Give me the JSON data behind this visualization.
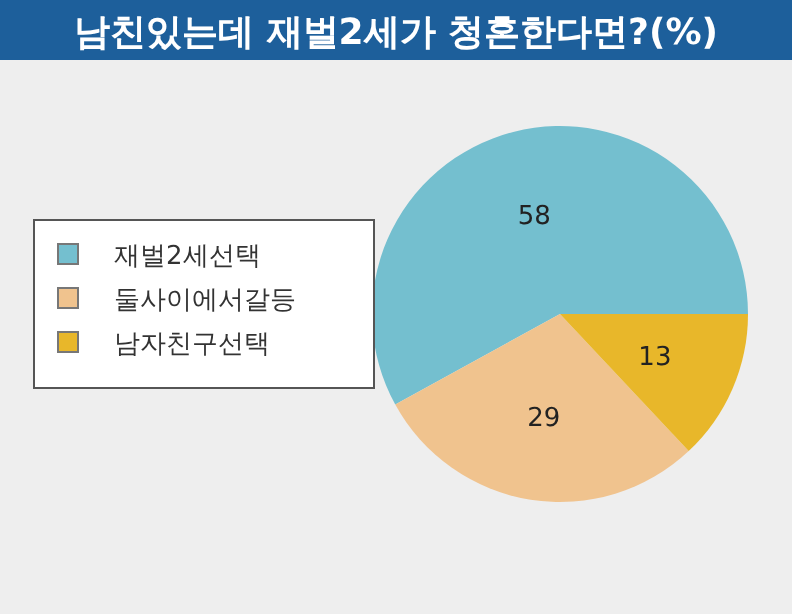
{
  "chart_data": {
    "type": "pie",
    "title": "남친있는데 재벌2세가 청혼한다면?(%)",
    "categories": [
      "재벌2세선택",
      "둘사이에서갈등",
      "남자친구선택"
    ],
    "values": [
      58,
      29,
      13
    ],
    "colors": [
      "#74bfcf",
      "#f0c38e",
      "#e8b72a"
    ],
    "data_labels": true,
    "legend": "left"
  }
}
